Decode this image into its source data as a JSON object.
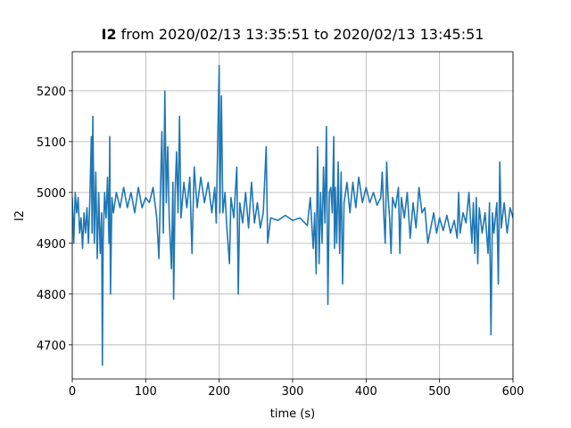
{
  "chart_data": {
    "type": "line",
    "title": {
      "bold": "I2",
      "text": "from 2020/02/13 13:35:51 to 2020/02/13 13:45:51"
    },
    "x_label": "time (s)",
    "y_label": "I2",
    "color": "#1f77b4",
    "grid": true,
    "xlim": [
      0,
      600
    ],
    "xticks": [
      0,
      100,
      200,
      300,
      400,
      500,
      600
    ],
    "ylim": [
      4633,
      5277
    ],
    "yticks": [
      4700,
      4800,
      4900,
      5000,
      5100,
      5200
    ],
    "x": [
      0,
      2,
      4,
      6,
      8,
      10,
      12,
      14,
      16,
      18,
      20,
      22,
      24,
      26,
      27,
      28,
      30,
      32,
      34,
      36,
      38,
      40,
      41,
      42,
      44,
      46,
      48,
      50,
      51,
      52,
      54,
      56,
      60,
      65,
      70,
      75,
      80,
      85,
      90,
      95,
      100,
      105,
      110,
      115,
      118,
      120,
      122,
      124,
      126,
      128,
      130,
      132,
      135,
      137,
      138,
      140,
      142,
      144,
      146,
      148,
      152,
      156,
      160,
      163,
      166,
      170,
      175,
      180,
      185,
      190,
      194,
      196,
      198,
      200,
      201,
      203,
      205,
      208,
      210,
      214,
      216,
      220,
      224,
      226,
      228,
      232,
      236,
      240,
      244,
      248,
      252,
      256,
      260,
      264,
      266,
      270,
      280,
      290,
      300,
      310,
      320,
      324,
      328,
      330,
      332,
      334,
      336,
      338,
      340,
      342,
      344,
      346,
      348,
      350,
      352,
      354,
      356,
      357,
      358,
      360,
      362,
      364,
      366,
      368,
      370,
      374,
      378,
      382,
      386,
      390,
      395,
      400,
      405,
      410,
      415,
      420,
      422,
      424,
      426,
      428,
      430,
      432,
      434,
      436,
      440,
      444,
      446,
      448,
      452,
      456,
      460,
      464,
      468,
      472,
      476,
      480,
      484,
      488,
      492,
      496,
      500,
      505,
      510,
      515,
      520,
      524,
      526,
      528,
      532,
      536,
      540,
      544,
      546,
      548,
      550,
      552,
      554,
      558,
      562,
      566,
      568,
      570,
      572,
      574,
      578,
      580,
      582,
      584,
      588,
      592,
      596,
      600
    ],
    "values": [
      4990,
      4900,
      5000,
      4960,
      4990,
      4920,
      4950,
      4890,
      4960,
      4920,
      4970,
      4900,
      4990,
      5110,
      4920,
      5150,
      4900,
      5040,
      4870,
      5000,
      4880,
      4960,
      4660,
      4900,
      5000,
      4950,
      5030,
      4900,
      5110,
      4800,
      4990,
      4960,
      5000,
      4970,
      5010,
      4970,
      5000,
      4960,
      5010,
      4970,
      4990,
      4980,
      5010,
      4950,
      4870,
      5000,
      5120,
      4920,
      5200,
      4980,
      5090,
      4950,
      4850,
      5020,
      4790,
      5000,
      5080,
      4960,
      5150,
      4950,
      5020,
      4970,
      5030,
      4880,
      5050,
      4970,
      5030,
      4980,
      5020,
      4960,
      5010,
      4940,
      5100,
      5250,
      4960,
      5190,
      4960,
      5000,
      4940,
      4860,
      4990,
      4950,
      5050,
      4800,
      4980,
      4940,
      5000,
      4930,
      5020,
      4940,
      4980,
      4930,
      4960,
      5090,
      4900,
      4950,
      4945,
      4955,
      4945,
      4950,
      4935,
      4990,
      4890,
      4960,
      4840,
      5090,
      4860,
      5000,
      4900,
      5050,
      4940,
      5130,
      4780,
      5000,
      5010,
      4960,
      5110,
      4890,
      5010,
      4900,
      5060,
      4880,
      5040,
      4820,
      4980,
      5020,
      4960,
      5020,
      4970,
      5030,
      4980,
      5010,
      4980,
      5000,
      4975,
      4990,
      5040,
      4960,
      4900,
      5060,
      4990,
      4950,
      4880,
      4990,
      4970,
      5010,
      4880,
      4990,
      4950,
      5000,
      4910,
      4980,
      4930,
      5010,
      4960,
      4970,
      4900,
      4930,
      4960,
      4920,
      4950,
      4925,
      4955,
      4920,
      4945,
      4910,
      5000,
      4920,
      4960,
      4940,
      5000,
      4900,
      4980,
      4880,
      4990,
      4860,
      4970,
      4920,
      4960,
      4880,
      4980,
      4720,
      4960,
      4920,
      4980,
      4820,
      5060,
      4930,
      4980,
      4920,
      4970,
      4950
    ]
  }
}
